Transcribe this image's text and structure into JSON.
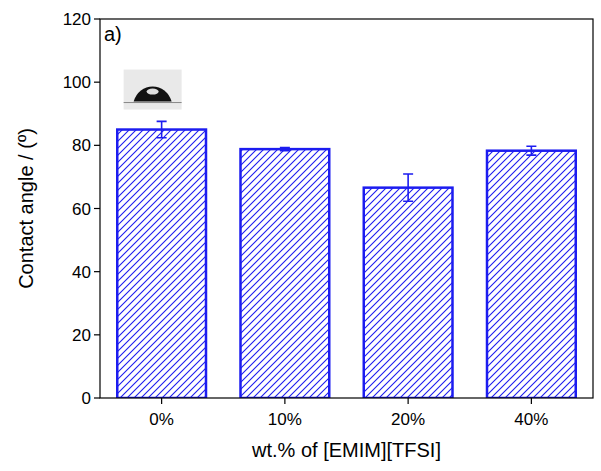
{
  "chart_data": {
    "type": "bar",
    "x_label": "wt.% of [EMIM][TFSI]",
    "y_label": "Contact angle / (º)",
    "annotations": [
      "a)"
    ],
    "categories": [
      "0%",
      "10%",
      "20%",
      "40%"
    ],
    "values": [
      85,
      78.8,
      66.6,
      78.3
    ],
    "errors": [
      2.6,
      0.5,
      4.3,
      1.4
    ],
    "color": "#1c1cf0",
    "ylim": [
      0,
      120
    ],
    "yticks": [
      0,
      20,
      40,
      60,
      80,
      100,
      120
    ],
    "grid": false
  }
}
